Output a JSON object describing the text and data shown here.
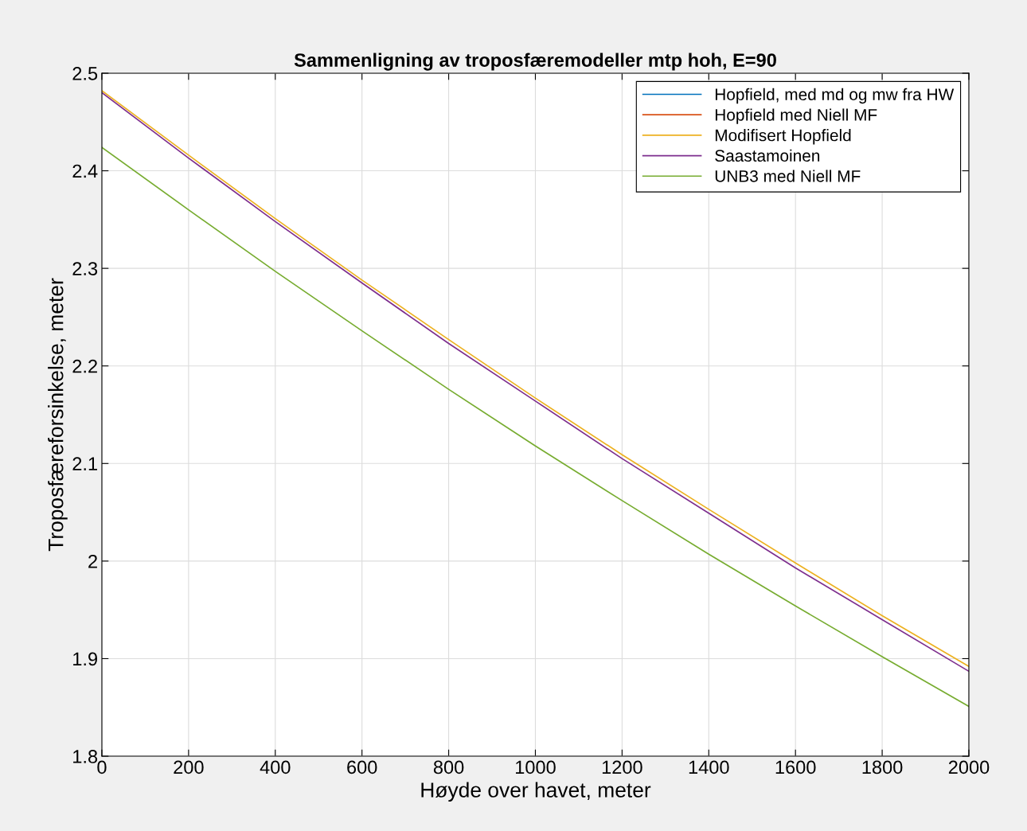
{
  "chart_data": {
    "type": "line",
    "title": "Sammenligning av troposfæremodeller mtp hoh, E=90",
    "xlabel": "Høyde over havet, meter",
    "ylabel": "Troposfæreforsinkelse, meter",
    "x": [
      0,
      200,
      400,
      600,
      800,
      1000,
      1200,
      1400,
      1600,
      1800,
      2000
    ],
    "series": [
      {
        "name": "Hopfield, med md og mw fra HW",
        "color": "#0072bd",
        "values": [
          null,
          null,
          null,
          null,
          null,
          null,
          null,
          null,
          null,
          null,
          null
        ]
      },
      {
        "name": "Hopfield med Niell MF",
        "color": "#d95319",
        "values": [
          null,
          null,
          null,
          null,
          null,
          null,
          null,
          null,
          null,
          null,
          null
        ]
      },
      {
        "name": "Modifisert Hopfield",
        "color": "#edb120",
        "values": [
          2.482,
          2.416,
          2.351,
          2.288,
          2.227,
          2.167,
          2.109,
          2.053,
          1.998,
          1.944,
          1.892
        ]
      },
      {
        "name": "Saastamoinen",
        "color": "#7e2f8e",
        "values": [
          2.48,
          2.413,
          2.348,
          2.285,
          2.223,
          2.164,
          2.105,
          2.049,
          1.993,
          1.94,
          1.887
        ]
      },
      {
        "name": "UNB3 med Niell MF",
        "color": "#77ac30",
        "values": [
          2.424,
          2.36,
          2.297,
          2.236,
          2.176,
          2.118,
          2.062,
          2.007,
          1.954,
          1.902,
          1.851
        ]
      }
    ],
    "xlim": [
      0,
      2000
    ],
    "xticks": [
      0,
      200,
      400,
      600,
      800,
      1000,
      1200,
      1400,
      1600,
      1800,
      2000
    ],
    "ylim": [
      1.8,
      2.5
    ],
    "yticks": [
      1.8,
      1.9,
      2,
      2.1,
      2.2,
      2.3,
      2.4,
      2.5
    ],
    "grid": true,
    "legend": "top right",
    "marker": "none",
    "line_style": "solid"
  }
}
